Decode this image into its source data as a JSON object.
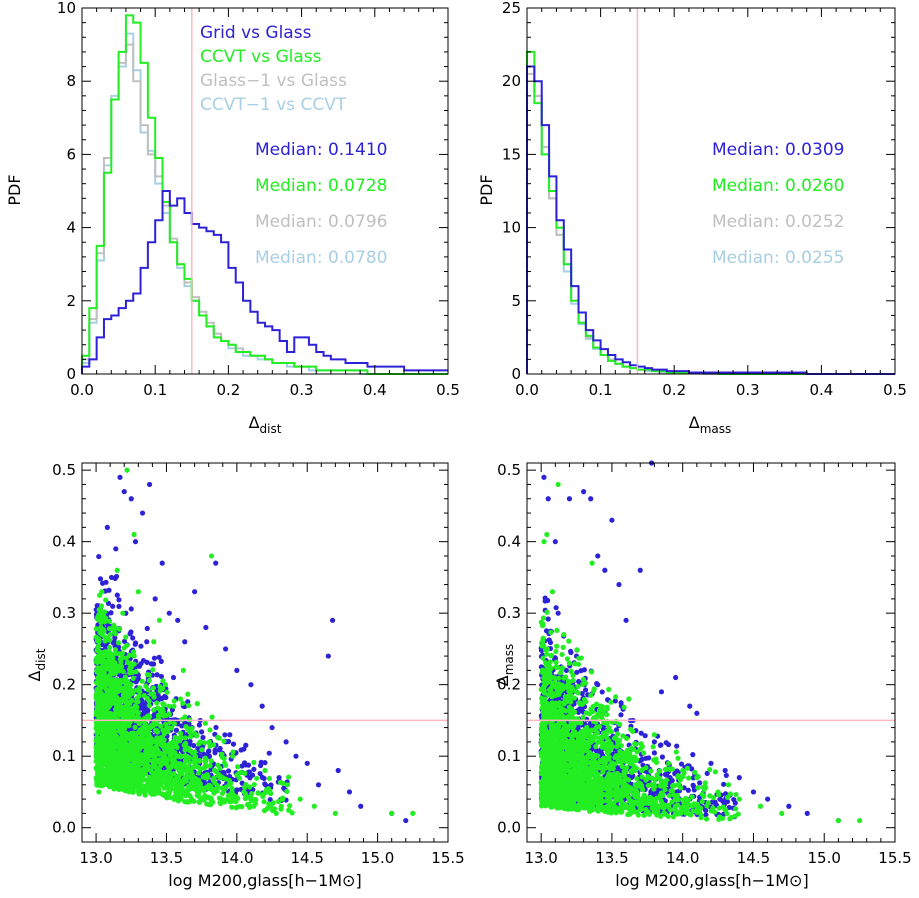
{
  "colors": {
    "grid": "#2e22d6",
    "ccvt": "#22ee22",
    "glass": "#c0c0c0",
    "ccvt1": "#a8cfe3",
    "ref": "#ffb6c1",
    "axis": "#000000"
  },
  "chart_data": [
    {
      "type": "line",
      "panel": "top-left",
      "xlabel": "Δdist",
      "xlabel_main": "Δ",
      "xlabel_sub": "dist",
      "ylabel": "PDF",
      "xlim": [
        0,
        0.5
      ],
      "ylim": [
        0,
        10
      ],
      "xticks": [
        "0.0",
        "0.1",
        "0.2",
        "0.3",
        "0.4",
        "0.5"
      ],
      "yticks": [
        "0",
        "2",
        "4",
        "6",
        "8",
        "10"
      ],
      "bin_width": 0.01,
      "reference_line": {
        "x": 0.15
      },
      "legend": [
        "Grid vs Glass",
        "CCVT vs Glass",
        "Glass−1 vs Glass",
        "CCVT−1 vs CCVT"
      ],
      "medians": [
        "Median: 0.1410",
        "Median: 0.0728",
        "Median: 0.0796",
        "Median: 0.0780"
      ],
      "series": [
        {
          "name": "Grid vs Glass",
          "color": "#2e22d6",
          "values": [
            0.2,
            0.4,
            1.0,
            1.5,
            1.6,
            1.8,
            2.0,
            2.2,
            2.9,
            3.6,
            4.2,
            5.0,
            4.6,
            4.8,
            4.4,
            4.1,
            4.0,
            3.9,
            3.8,
            3.6,
            2.9,
            2.5,
            2.0,
            1.7,
            1.4,
            1.3,
            1.2,
            0.9,
            0.6,
            1.0,
            1.0,
            0.8,
            0.6,
            0.5,
            0.4,
            0.4,
            0.3,
            0.3,
            0.3,
            0.2,
            0.2,
            0.2,
            0.2,
            0.2,
            0.1,
            0.1,
            0.1,
            0.1,
            0.1,
            0.1
          ]
        },
        {
          "name": "CCVT vs Glass",
          "color": "#22ee22",
          "values": [
            0.5,
            1.8,
            3.5,
            5.5,
            7.5,
            8.8,
            9.8,
            9.6,
            8.5,
            7.0,
            5.9,
            4.7,
            3.6,
            3.0,
            2.6,
            2.0,
            1.6,
            1.3,
            1.0,
            0.9,
            0.8,
            0.6,
            0.6,
            0.5,
            0.5,
            0.4,
            0.3,
            0.3,
            0.3,
            0.2,
            0.2,
            0.2,
            0.1,
            0.1,
            0.1,
            0.1,
            0.1,
            0.1,
            0.1,
            0.0,
            0.0,
            0.0,
            0.0,
            0.0,
            0.0,
            0.0,
            0.0,
            0.0,
            0.0,
            0.0
          ]
        },
        {
          "name": "Glass−1 vs Glass",
          "color": "#c0c0c0",
          "values": [
            0.4,
            1.5,
            3.3,
            5.9,
            7.5,
            8.5,
            9.0,
            8.0,
            6.8,
            6.0,
            5.4,
            4.6,
            3.7,
            3.0,
            2.5,
            2.1,
            1.7,
            1.4,
            1.1,
            0.9,
            0.8,
            0.7,
            0.6,
            0.5,
            0.5,
            0.4,
            0.3,
            0.3,
            0.3,
            0.2,
            0.2,
            0.2,
            0.1,
            0.1,
            0.1,
            0.1,
            0.1,
            0.1,
            0.1,
            0.0,
            0.0,
            0.0,
            0.0,
            0.0,
            0.0,
            0.0,
            0.0,
            0.0,
            0.0,
            0.0
          ]
        },
        {
          "name": "CCVT−1 vs CCVT",
          "color": "#a8cfe3",
          "values": [
            0.3,
            1.4,
            3.1,
            5.7,
            7.6,
            8.4,
            9.3,
            8.3,
            6.6,
            6.1,
            5.2,
            4.4,
            3.6,
            2.9,
            2.4,
            2.0,
            1.6,
            1.3,
            1.1,
            0.9,
            0.7,
            0.6,
            0.5,
            0.5,
            0.4,
            0.4,
            0.3,
            0.3,
            0.2,
            0.2,
            0.2,
            0.1,
            0.1,
            0.1,
            0.1,
            0.1,
            0.1,
            0.1,
            0.0,
            0.0,
            0.0,
            0.0,
            0.0,
            0.0,
            0.0,
            0.0,
            0.0,
            0.0,
            0.0,
            0.0
          ]
        }
      ]
    },
    {
      "type": "line",
      "panel": "top-right",
      "xlabel": "Δmass",
      "xlabel_main": "Δ",
      "xlabel_sub": "mass",
      "ylabel": "PDF",
      "xlim": [
        0,
        0.5
      ],
      "ylim": [
        0,
        25
      ],
      "xticks": [
        "0.0",
        "0.1",
        "0.2",
        "0.3",
        "0.4",
        "0.5"
      ],
      "yticks": [
        "0",
        "5",
        "10",
        "15",
        "20",
        "25"
      ],
      "bin_width": 0.01,
      "reference_line": {
        "x": 0.15
      },
      "medians": [
        "Median: 0.0309",
        "Median: 0.0260",
        "Median: 0.0252",
        "Median: 0.0255"
      ],
      "series": [
        {
          "name": "Grid vs Glass",
          "color": "#2e22d6",
          "values": [
            21.0,
            20.0,
            17.0,
            13.5,
            10.5,
            8.5,
            6.0,
            4.2,
            3.0,
            2.3,
            1.7,
            1.3,
            1.0,
            0.8,
            0.6,
            0.5,
            0.4,
            0.3,
            0.3,
            0.2,
            0.2,
            0.2,
            0.1,
            0.1,
            0.1,
            0.1,
            0.1,
            0.1,
            0.1,
            0.1,
            0.1,
            0.1,
            0.1,
            0.1,
            0.1,
            0.1,
            0.1,
            0.1,
            0.0,
            0.0,
            0.0,
            0.0,
            0.0,
            0.0,
            0.0,
            0.0,
            0.0,
            0.0,
            0.0,
            0.0
          ]
        },
        {
          "name": "CCVT vs Glass",
          "color": "#22ee22",
          "values": [
            22.0,
            18.5,
            15.0,
            12.5,
            10.0,
            7.5,
            5.0,
            3.5,
            2.6,
            1.8,
            1.3,
            0.9,
            0.7,
            0.5,
            0.4,
            0.3,
            0.3,
            0.2,
            0.2,
            0.1,
            0.1,
            0.1,
            0.1,
            0.1,
            0.1,
            0.1,
            0.0,
            0.0,
            0.0,
            0.0,
            0.0,
            0.0,
            0.0,
            0.0,
            0.0,
            0.0,
            0.0,
            0.0,
            0.0,
            0.0,
            0.0,
            0.0,
            0.0,
            0.0,
            0.0,
            0.0,
            0.0,
            0.0,
            0.0,
            0.0
          ]
        },
        {
          "name": "Glass−1 vs Glass",
          "color": "#c0c0c0",
          "values": [
            20.5,
            19.0,
            15.5,
            12.0,
            9.5,
            7.5,
            5.0,
            3.5,
            2.5,
            1.8,
            1.3,
            1.0,
            0.7,
            0.5,
            0.4,
            0.3,
            0.3,
            0.2,
            0.2,
            0.1,
            0.1,
            0.1,
            0.1,
            0.1,
            0.1,
            0.0,
            0.0,
            0.0,
            0.0,
            0.0,
            0.0,
            0.0,
            0.0,
            0.0,
            0.0,
            0.0,
            0.0,
            0.0,
            0.0,
            0.0,
            0.0,
            0.0,
            0.0,
            0.0,
            0.0,
            0.0,
            0.0,
            0.0,
            0.0,
            0.0
          ]
        },
        {
          "name": "CCVT−1 vs CCVT",
          "color": "#a8cfe3",
          "values": [
            21.0,
            19.0,
            15.0,
            12.0,
            9.5,
            7.0,
            4.8,
            3.4,
            2.4,
            1.7,
            1.3,
            0.9,
            0.7,
            0.5,
            0.4,
            0.3,
            0.2,
            0.2,
            0.1,
            0.1,
            0.1,
            0.1,
            0.1,
            0.1,
            0.0,
            0.0,
            0.0,
            0.0,
            0.0,
            0.0,
            0.0,
            0.0,
            0.0,
            0.0,
            0.0,
            0.0,
            0.0,
            0.0,
            0.0,
            0.0,
            0.0,
            0.0,
            0.0,
            0.0,
            0.0,
            0.0,
            0.0,
            0.0,
            0.0,
            0.0
          ]
        }
      ]
    },
    {
      "type": "scatter",
      "panel": "bottom-left",
      "xlabel": "log M200,glass[h−1M⊙]",
      "ylabel": "Δdist",
      "ylabel_main": "Δ",
      "ylabel_sub": "dist",
      "xlim": [
        12.9,
        15.5
      ],
      "ylim": [
        -0.02,
        0.51
      ],
      "xticks": [
        "13.0",
        "13.5",
        "14.0",
        "14.5",
        "15.0",
        "15.5"
      ],
      "yticks": [
        "0.0",
        "0.1",
        "0.2",
        "0.3",
        "0.4",
        "0.5"
      ],
      "reference_line": {
        "y": 0.15
      },
      "series": [
        {
          "name": "Grid vs Glass",
          "color": "#2e22d6",
          "density": "dense cloud, x 13.0–15.2, concentrated 0.02–0.35 near x≈13.0–13.8",
          "x": [
            13.02,
            13.05,
            13.08,
            13.11,
            13.14,
            13.17,
            13.2,
            13.25,
            13.28,
            13.33,
            13.38,
            13.42,
            13.47,
            13.52,
            13.58,
            13.63,
            13.7,
            13.78,
            13.85,
            13.92,
            14.0,
            14.1,
            14.18,
            14.25,
            14.35,
            14.42,
            14.5,
            14.58,
            14.65,
            14.68,
            14.72,
            14.8,
            14.88,
            15.1,
            15.2,
            13.1,
            13.21,
            13.36,
            13.43,
            13.55,
            13.62,
            13.74,
            13.95,
            14.05,
            14.3
          ],
          "y": [
            0.31,
            0.28,
            0.42,
            0.35,
            0.39,
            0.49,
            0.47,
            0.46,
            0.4,
            0.44,
            0.48,
            0.32,
            0.37,
            0.3,
            0.29,
            0.26,
            0.33,
            0.28,
            0.37,
            0.25,
            0.22,
            0.2,
            0.17,
            0.14,
            0.12,
            0.1,
            0.09,
            0.06,
            0.24,
            0.29,
            0.08,
            0.05,
            0.03,
            0.02,
            0.01,
            0.18,
            0.22,
            0.26,
            0.19,
            0.21,
            0.17,
            0.15,
            0.13,
            0.11,
            0.07
          ]
        },
        {
          "name": "CCVT vs Glass",
          "color": "#22ee22",
          "density": "dense cloud, x 13.0–15.3, concentrated 0.02–0.25",
          "x": [
            13.02,
            13.04,
            13.07,
            13.1,
            13.13,
            13.16,
            13.19,
            13.22,
            13.27,
            13.31,
            13.36,
            13.41,
            13.46,
            13.51,
            13.57,
            13.62,
            13.68,
            13.74,
            13.82,
            13.9,
            13.97,
            14.05,
            14.12,
            14.2,
            14.28,
            14.36,
            14.45,
            14.55,
            14.7,
            15.1,
            15.25,
            13.15,
            13.3,
            13.45,
            13.6
          ],
          "y": [
            0.05,
            0.12,
            0.2,
            0.27,
            0.08,
            0.15,
            0.3,
            0.5,
            0.41,
            0.19,
            0.11,
            0.26,
            0.06,
            0.14,
            0.09,
            0.22,
            0.04,
            0.12,
            0.38,
            0.07,
            0.1,
            0.05,
            0.03,
            0.08,
            0.02,
            0.06,
            0.04,
            0.03,
            0.02,
            0.02,
            0.02,
            0.36,
            0.33,
            0.29,
            0.18
          ]
        }
      ]
    },
    {
      "type": "scatter",
      "panel": "bottom-right",
      "xlabel": "log M200,glass[h−1M⊙]",
      "ylabel": "Δmass",
      "ylabel_main": "Δ",
      "ylabel_sub": "mass",
      "xlim": [
        12.9,
        15.5
      ],
      "ylim": [
        -0.02,
        0.51
      ],
      "xticks": [
        "13.0",
        "13.5",
        "14.0",
        "14.5",
        "15.0",
        "15.5"
      ],
      "yticks": [
        "0.0",
        "0.1",
        "0.2",
        "0.3",
        "0.4",
        "0.5"
      ],
      "reference_line": {
        "y": 0.15
      },
      "series": [
        {
          "name": "Grid vs Glass",
          "color": "#2e22d6",
          "density": "dense cloud, x 13.0–15.1, concentrated 0.0–0.15",
          "x": [
            13.02,
            13.05,
            13.1,
            13.2,
            13.3,
            13.35,
            13.4,
            13.45,
            13.5,
            13.55,
            13.6,
            13.7,
            13.78,
            13.85,
            13.95,
            14.05,
            14.1,
            14.2,
            14.3,
            14.4,
            14.5,
            14.6,
            14.75,
            14.88,
            15.1,
            13.12,
            13.25,
            13.4,
            13.65,
            13.8
          ],
          "y": [
            0.49,
            0.46,
            0.4,
            0.46,
            0.47,
            0.46,
            0.38,
            0.36,
            0.43,
            0.34,
            0.29,
            0.36,
            0.51,
            0.19,
            0.21,
            0.17,
            0.16,
            0.09,
            0.08,
            0.07,
            0.05,
            0.04,
            0.03,
            0.02,
            0.01,
            0.3,
            0.24,
            0.2,
            0.15,
            0.12
          ]
        },
        {
          "name": "CCVT vs Glass",
          "color": "#22ee22",
          "density": "dense cloud, x 13.0–15.3, concentrated 0.0–0.12",
          "x": [
            13.02,
            13.04,
            13.08,
            13.12,
            13.16,
            13.2,
            13.25,
            13.3,
            13.36,
            13.42,
            13.48,
            13.55,
            13.62,
            13.7,
            13.8,
            13.9,
            14.0,
            14.1,
            14.25,
            14.4,
            14.55,
            14.7,
            15.1,
            15.25,
            13.05,
            13.15,
            13.28,
            13.38
          ],
          "y": [
            0.4,
            0.41,
            0.33,
            0.48,
            0.27,
            0.23,
            0.19,
            0.12,
            0.37,
            0.17,
            0.14,
            0.1,
            0.18,
            0.11,
            0.13,
            0.09,
            0.08,
            0.07,
            0.05,
            0.04,
            0.03,
            0.02,
            0.01,
            0.01,
            0.07,
            0.06,
            0.05,
            0.04
          ]
        }
      ]
    }
  ]
}
